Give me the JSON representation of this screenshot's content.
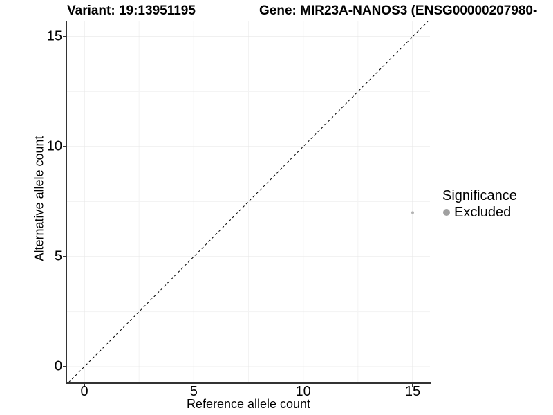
{
  "chart_data": {
    "type": "scatter",
    "titles": {
      "left": "Variant: 19:13951195",
      "right": "Gene: MIR23A-NANOS3 (ENSG00000207980-"
    },
    "xlabel": "Reference allele count",
    "ylabel": "Alternative allele count",
    "x_ticks": [
      0,
      5,
      10,
      15
    ],
    "y_ticks": [
      0,
      5,
      10,
      15
    ],
    "x_minor_ticks": [
      2.5,
      7.5,
      12.5
    ],
    "y_minor_ticks": [
      2.5,
      7.5,
      12.5
    ],
    "xlim": [
      -0.79,
      15.79
    ],
    "ylim": [
      -0.72,
      15.72
    ],
    "grid": "major+minor",
    "identity_line": {
      "slope": 1,
      "intercept": 0,
      "linetype": "dashed",
      "color": "#000000"
    },
    "series": [
      {
        "name": "Excluded",
        "color": "#b4b4b4",
        "points": [
          {
            "x": 15,
            "y": 7
          }
        ]
      }
    ],
    "legend": {
      "title": "Significance",
      "position": "right",
      "items": [
        {
          "label": "Excluded",
          "color": "#a0a0a0"
        }
      ]
    },
    "colors": {
      "grid_major": "#e6e6e6",
      "grid_minor": "#f3f3f3",
      "axis": "#333333",
      "text": "#000000"
    }
  }
}
